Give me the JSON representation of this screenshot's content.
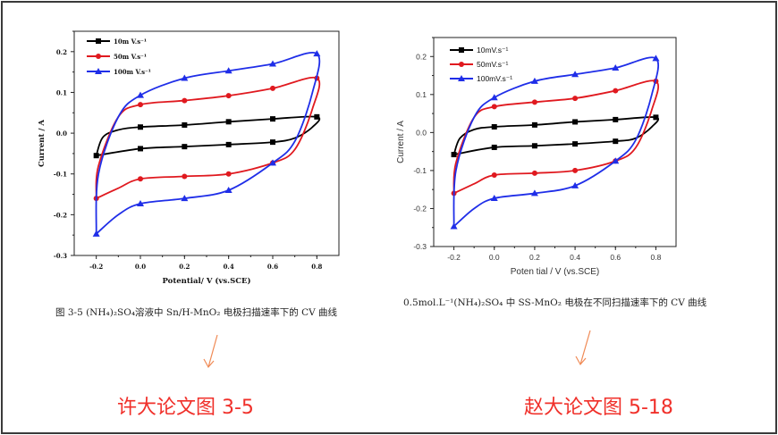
{
  "chart_data": [
    {
      "type": "line",
      "xlabel": "Potential/ V (vs.SCE)",
      "ylabel": "Current / A",
      "xlim": [
        -0.3,
        0.9
      ],
      "ylim": [
        -0.3,
        0.25
      ],
      "xticks": [
        "-0.2",
        "0.0",
        "0.2",
        "0.4",
        "0.6",
        "0.8"
      ],
      "yticks": [
        "0.2",
        "0.1",
        "0.0",
        "-0.1",
        "-0.2",
        "-0.3"
      ],
      "legend_position": "top-left",
      "grid": false,
      "caption": "图 3-5 (NH₄)₂SO₄溶液中 Sn/H-MnO₂ 电极扫描速率下的 CV 曲线",
      "series": [
        {
          "name": "10m V.s⁻¹",
          "color": "#000000",
          "marker": "square",
          "points": [
            [
              -0.2,
              -0.055
            ],
            [
              -0.17,
              -0.01
            ],
            [
              -0.1,
              0.008
            ],
            [
              0,
              0.015
            ],
            [
              0.2,
              0.02
            ],
            [
              0.4,
              0.028
            ],
            [
              0.6,
              0.035
            ],
            [
              0.8,
              0.04
            ],
            [
              0.78,
              0.015
            ],
            [
              0.7,
              -0.012
            ],
            [
              0.6,
              -0.022
            ],
            [
              0.4,
              -0.028
            ],
            [
              0.2,
              -0.033
            ],
            [
              0,
              -0.038
            ],
            [
              -0.2,
              -0.055
            ]
          ]
        },
        {
          "name": "50m V.s⁻¹",
          "color": "#e0191f",
          "marker": "circle",
          "points": [
            [
              -0.2,
              -0.16
            ],
            [
              -0.19,
              -0.08
            ],
            [
              -0.1,
              0.04
            ],
            [
              0,
              0.07
            ],
            [
              0.2,
              0.08
            ],
            [
              0.4,
              0.092
            ],
            [
              0.6,
              0.11
            ],
            [
              0.8,
              0.135
            ],
            [
              0.78,
              0.06
            ],
            [
              0.7,
              -0.04
            ],
            [
              0.6,
              -0.073
            ],
            [
              0.4,
              -0.1
            ],
            [
              0.2,
              -0.106
            ],
            [
              0,
              -0.112
            ],
            [
              -0.1,
              -0.135
            ],
            [
              -0.2,
              -0.16
            ]
          ]
        },
        {
          "name": "100m V.s⁻¹",
          "color": "#1f2ee8",
          "marker": "triangle",
          "points": [
            [
              -0.2,
              -0.247
            ],
            [
              -0.19,
              -0.1
            ],
            [
              -0.1,
              0.04
            ],
            [
              0,
              0.093
            ],
            [
              0.2,
              0.135
            ],
            [
              0.4,
              0.153
            ],
            [
              0.6,
              0.17
            ],
            [
              0.8,
              0.195
            ],
            [
              0.78,
              0.1
            ],
            [
              0.7,
              -0.02
            ],
            [
              0.6,
              -0.073
            ],
            [
              0.4,
              -0.14
            ],
            [
              0.2,
              -0.16
            ],
            [
              0,
              -0.173
            ],
            [
              -0.1,
              -0.2
            ],
            [
              -0.2,
              -0.247
            ]
          ]
        }
      ]
    },
    {
      "type": "line",
      "xlabel": "Poten tial / V (vs.SCE)",
      "ylabel": "Current / A",
      "xlim": [
        -0.3,
        0.9
      ],
      "ylim": [
        -0.3,
        0.25
      ],
      "xticks": [
        "-0.2",
        "0.0",
        "0.2",
        "0.4",
        "0.6",
        "0.8"
      ],
      "yticks": [
        "0.2",
        "0.1",
        "0.0",
        "-0.1",
        "-0.2",
        "-0.3"
      ],
      "legend_position": "top-left",
      "grid": false,
      "caption": "0.5mol.L⁻¹(NH₄)₂SO₄ 中 SS-MnO₂ 电极在不同扫描速率下的 CV 曲线",
      "series": [
        {
          "name": "10mV.s⁻¹",
          "color": "#000000",
          "marker": "square",
          "points": [
            [
              -0.2,
              -0.058
            ],
            [
              -0.17,
              -0.015
            ],
            [
              -0.1,
              0.008
            ],
            [
              0,
              0.015
            ],
            [
              0.2,
              0.02
            ],
            [
              0.4,
              0.028
            ],
            [
              0.6,
              0.034
            ],
            [
              0.8,
              0.04
            ],
            [
              0.78,
              0.015
            ],
            [
              0.7,
              -0.015
            ],
            [
              0.6,
              -0.023
            ],
            [
              0.4,
              -0.03
            ],
            [
              0.2,
              -0.035
            ],
            [
              0,
              -0.039
            ],
            [
              -0.2,
              -0.058
            ]
          ]
        },
        {
          "name": "50mV.s⁻¹",
          "color": "#e0191f",
          "marker": "circle",
          "points": [
            [
              -0.2,
              -0.16
            ],
            [
              -0.19,
              -0.08
            ],
            [
              -0.1,
              0.04
            ],
            [
              0,
              0.068
            ],
            [
              0.2,
              0.08
            ],
            [
              0.4,
              0.09
            ],
            [
              0.6,
              0.11
            ],
            [
              0.8,
              0.135
            ],
            [
              0.78,
              0.06
            ],
            [
              0.7,
              -0.04
            ],
            [
              0.6,
              -0.075
            ],
            [
              0.4,
              -0.1
            ],
            [
              0.2,
              -0.107
            ],
            [
              0,
              -0.112
            ],
            [
              -0.1,
              -0.135
            ],
            [
              -0.2,
              -0.16
            ]
          ]
        },
        {
          "name": "100mV.s⁻¹",
          "color": "#1f2ee8",
          "marker": "triangle",
          "points": [
            [
              -0.2,
              -0.247
            ],
            [
              -0.19,
              -0.1
            ],
            [
              -0.1,
              0.04
            ],
            [
              0,
              0.092
            ],
            [
              0.2,
              0.135
            ],
            [
              0.4,
              0.153
            ],
            [
              0.6,
              0.17
            ],
            [
              0.8,
              0.195
            ],
            [
              0.78,
              0.1
            ],
            [
              0.7,
              -0.02
            ],
            [
              0.6,
              -0.075
            ],
            [
              0.4,
              -0.14
            ],
            [
              0.2,
              -0.16
            ],
            [
              0,
              -0.173
            ],
            [
              -0.1,
              -0.2
            ],
            [
              -0.2,
              -0.247
            ]
          ]
        }
      ]
    }
  ],
  "labels": {
    "left_title": "许大论文图 3-5",
    "right_title": "赵大论文图 5-18",
    "arrow_color": "#f08a55",
    "title_color": "#f0302a"
  }
}
